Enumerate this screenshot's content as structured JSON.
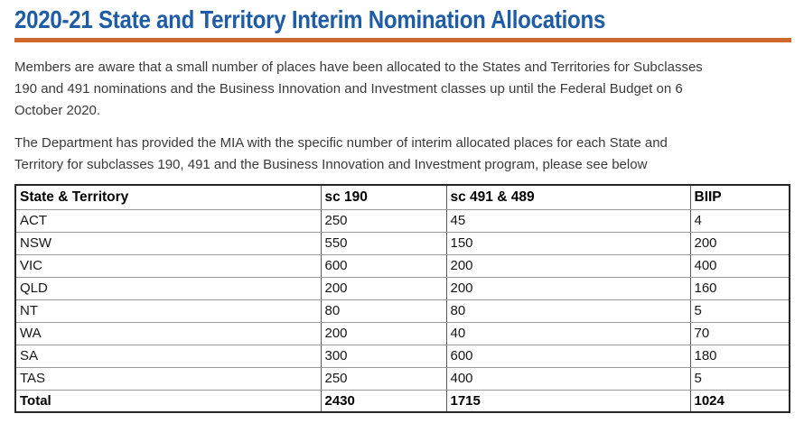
{
  "header": {
    "title": "2020-21 State and Territory Interim Nomination Allocations",
    "title_color": "#1e5ca6",
    "divider_color": "#d0682e"
  },
  "paragraphs": {
    "intro": "Members are aware that a small number of places have been allocated to the States and Territories for Subclasses\n190 and 491 nominations and the Business Innovation and Investment classes up until the Federal Budget on 6\nOctober 2020.",
    "detail": "The Department has provided the MIA with the specific number of interim allocated places for each State and\nTerritory for subclasses 190, 491 and the Business Innovation and Investment program, please see below"
  },
  "table": {
    "headers": [
      "State & Territory",
      "sc 190",
      "sc 491 & 489",
      "BIIP"
    ],
    "rows": [
      [
        "ACT",
        "250",
        "45",
        "4"
      ],
      [
        "NSW",
        "550",
        "150",
        "200"
      ],
      [
        "VIC",
        "600",
        "200",
        "400"
      ],
      [
        "QLD",
        "200",
        "200",
        "160"
      ],
      [
        "NT",
        "80",
        "80",
        "5"
      ],
      [
        "WA",
        "200",
        "40",
        "70"
      ],
      [
        "SA",
        "300",
        "600",
        "180"
      ],
      [
        "TAS",
        "250",
        "400",
        "5"
      ],
      [
        "Total",
        "2430",
        "1715",
        "1024"
      ]
    ]
  }
}
